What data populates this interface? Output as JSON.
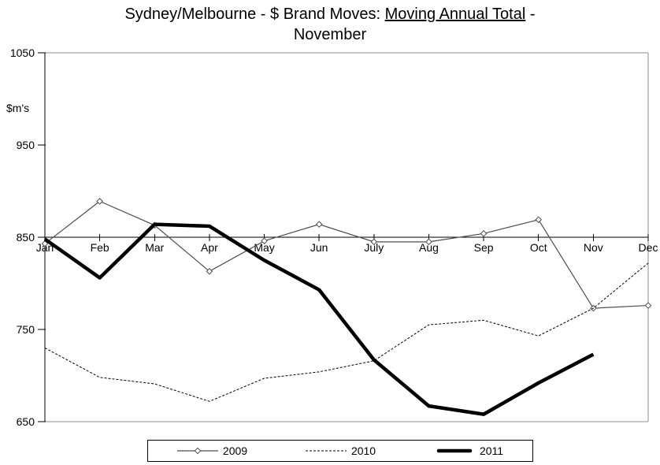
{
  "title": {
    "prefix": "Sydney/Melbourne - $ Brand Moves: ",
    "underlined": "Moving Annual Total",
    "suffix": " -",
    "line2": "November"
  },
  "chart_data": {
    "type": "line",
    "title": "Sydney/Melbourne - $ Brand Moves: Moving Annual Total - November",
    "ylabel": "$m's",
    "xlabel": "",
    "categories": [
      "Jan",
      "Feb",
      "Mar",
      "Apr",
      "May",
      "Jun",
      "July",
      "Aug",
      "Sep",
      "Oct",
      "Nov",
      "Dec"
    ],
    "ylim": [
      650,
      1050
    ],
    "y_tick_step": 100,
    "y_ticks": [
      650,
      750,
      850,
      950,
      1050
    ],
    "x_axis_cross_value": 850,
    "grid": false,
    "legend_position": "bottom",
    "series": [
      {
        "name": "2009",
        "style": "thin-diamond",
        "color": "#4d4d4d",
        "values": [
          843,
          889,
          863,
          813,
          846,
          864,
          845,
          845,
          854,
          869,
          773,
          776
        ]
      },
      {
        "name": "2010",
        "style": "dashed",
        "color": "#000000",
        "values": [
          730,
          698,
          691,
          672,
          697,
          704,
          716,
          755,
          760,
          743,
          773,
          822
        ]
      },
      {
        "name": "2011",
        "style": "thick",
        "color": "#000000",
        "values": [
          848,
          806,
          864,
          862,
          825,
          793,
          717,
          667,
          658,
          692,
          723,
          null
        ]
      }
    ]
  }
}
